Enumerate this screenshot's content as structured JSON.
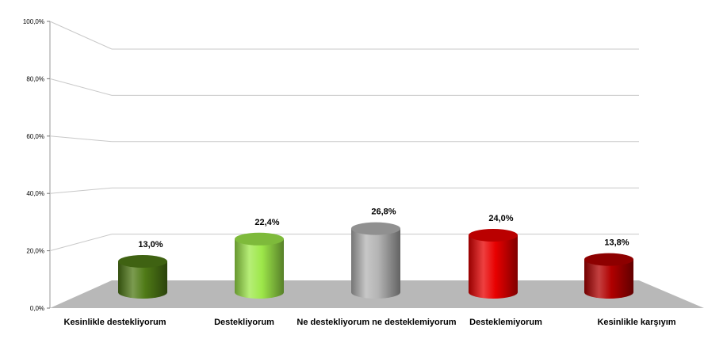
{
  "chart_data": {
    "type": "bar",
    "style": "3d-cylinder",
    "categories": [
      "Kesinlikle destekliyorum",
      "Destekliyorum",
      "Ne destekliyorum ne desteklemiyorum",
      "Desteklemiyorum",
      "Kesinlikle karşıyım"
    ],
    "values": [
      13.0,
      22.4,
      26.8,
      24.0,
      13.8
    ],
    "data_labels": [
      "13,0%",
      "22,4%",
      "26,8%",
      "24,0%",
      "13,8%"
    ],
    "y_ticks": [
      "0,0%",
      "20,0%",
      "40,0%",
      "60,0%",
      "80,0%",
      "100,0%"
    ],
    "ylim": [
      0,
      100
    ],
    "grid": true,
    "legend": "none",
    "colors": [
      "#4f7a16",
      "#9ee84a",
      "#b4b4b4",
      "#e80000",
      "#b00000"
    ],
    "floor_color": "#b8b8b8"
  }
}
